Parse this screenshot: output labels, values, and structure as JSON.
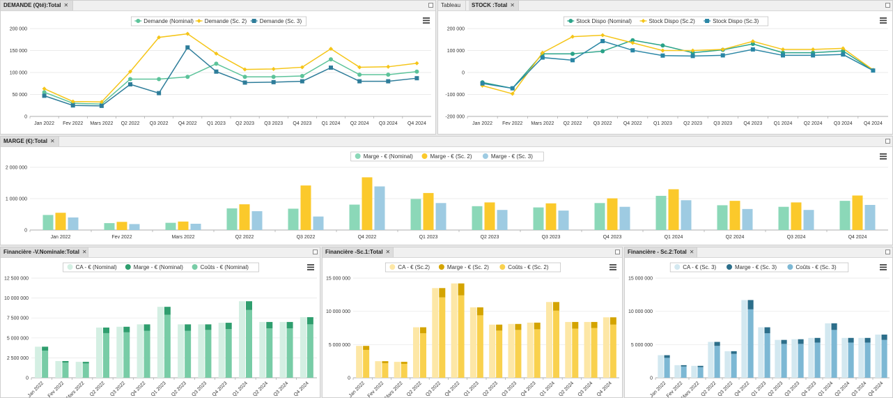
{
  "panels": {
    "demande": {
      "tabs": [
        "DEMANDE (Qté):Total"
      ],
      "legend": [
        "Demande (Nominal)",
        "Demande (Sc. 2)",
        "Demande (Sc. 3)"
      ]
    },
    "stock": {
      "tabs": [
        "Tableau",
        "STOCK :Total"
      ],
      "legend": [
        "Stock Dispo (Nominal)",
        "Stock Dispo (Sc.2)",
        "Stock Dispo (Sc.3)"
      ]
    },
    "marge": {
      "tabs": [
        "MARGE (€):Total"
      ],
      "legend": [
        "Marge - € (Nominal)",
        "Marge - € (Sc. 2)",
        "Marge - € (Sc. 3)"
      ]
    },
    "fin_nominal": {
      "tabs": [
        "Financière -V.Nominale:Total"
      ],
      "legend": [
        "CA - € (Nominal)",
        "Marge - € (Nominal)",
        "Coûts - € (Nominal)"
      ]
    },
    "fin_sc1": {
      "tabs": [
        "Financière -Sc.1:Total"
      ],
      "legend": [
        "CA - € (Sc.2)",
        "Marge - € (Sc. 2)",
        "Coûts - € (Sc. 2)"
      ]
    },
    "fin_sc2": {
      "tabs": [
        "Financière - Sc.2:Total"
      ],
      "legend": [
        "CA - € (Sc. 3)",
        "Marge - € (Sc. 3)",
        "Coûts - € (Sc. 3)"
      ]
    }
  },
  "chart_data": [
    {
      "id": "demande",
      "type": "line",
      "categories": [
        "Jan 2022",
        "Fev 2022",
        "Mars 2022",
        "Q2 2022",
        "Q3 2022",
        "Q4 2022",
        "Q1 2023",
        "Q2 2023",
        "Q3 2023",
        "Q4 2023",
        "Q1 2024",
        "Q2 2024",
        "Q3 2024",
        "Q4 2024"
      ],
      "yticks": [
        "0",
        "50 000",
        "100 000",
        "150 000",
        "200 000"
      ],
      "ylim": [
        0,
        200000
      ],
      "legend_position": "top",
      "series": [
        {
          "name": "Demande (Nominal)",
          "color": "#5cc39a",
          "marker": "circle",
          "values": [
            55000,
            30000,
            28000,
            85000,
            85000,
            90000,
            120000,
            90000,
            90000,
            92000,
            130000,
            95000,
            95000,
            102000
          ]
        },
        {
          "name": "Demande (Sc. 2)",
          "color": "#f5c518",
          "marker": "diamond",
          "values": [
            63000,
            34000,
            33000,
            102000,
            180000,
            188000,
            143000,
            107000,
            108000,
            112000,
            154000,
            112000,
            113000,
            121000
          ]
        },
        {
          "name": "Demande (Sc. 3)",
          "color": "#2e7d9a",
          "marker": "square",
          "values": [
            47000,
            25000,
            24000,
            73000,
            53000,
            157000,
            102000,
            77000,
            78000,
            80000,
            111000,
            80000,
            80000,
            87000
          ]
        }
      ]
    },
    {
      "id": "stock",
      "type": "line",
      "categories": [
        "Jan 2022",
        "Fev 2022",
        "Mars 2022",
        "Q2 2022",
        "Q3 2022",
        "Q4 2022",
        "Q1 2023",
        "Q2 2023",
        "Q3 2023",
        "Q4 2023",
        "Q1 2024",
        "Q2 2024",
        "Q3 2024",
        "Q4 2024"
      ],
      "yticks": [
        "-200 000",
        "-100 000",
        "0",
        "100 000",
        "200 000"
      ],
      "ylim": [
        -200000,
        200000
      ],
      "legend_position": "top",
      "series": [
        {
          "name": "Stock Dispo (Nominal)",
          "color": "#2aa389",
          "marker": "circle",
          "values": [
            -45000,
            -72000,
            85000,
            85000,
            97000,
            147000,
            123000,
            90000,
            103000,
            130000,
            90000,
            90000,
            98000,
            10000
          ]
        },
        {
          "name": "Stock Dispo (Sc.2)",
          "color": "#f5c518",
          "marker": "diamond",
          "values": [
            -60000,
            -97000,
            90000,
            163000,
            170000,
            135000,
            100000,
            100000,
            105000,
            142000,
            105000,
            105000,
            110000,
            12000
          ]
        },
        {
          "name": "Stock Dispo (Sc.3)",
          "color": "#2a86a5",
          "marker": "square",
          "values": [
            -50000,
            -72000,
            68000,
            56000,
            143000,
            101000,
            77000,
            75000,
            78000,
            105000,
            78000,
            78000,
            82000,
            9000
          ]
        }
      ]
    },
    {
      "id": "marge",
      "type": "bar",
      "categories": [
        "Jan 2022",
        "Fev 2022",
        "Mars 2022",
        "Q2 2022",
        "Q3 2022",
        "Q4 2022",
        "Q1 2023",
        "Q2 2023",
        "Q3 2023",
        "Q4 2023",
        "Q1 2024",
        "Q2 2024",
        "Q3 2024",
        "Q4 2024"
      ],
      "yticks": [
        "0",
        "1 000 000",
        "2 000 000"
      ],
      "ylim": [
        0,
        2000000
      ],
      "legend_position": "top",
      "series": [
        {
          "name": "Marge - € (Nominal)",
          "color": "#8bd8b8",
          "values": [
            480000,
            220000,
            230000,
            690000,
            680000,
            810000,
            990000,
            760000,
            720000,
            860000,
            1090000,
            790000,
            740000,
            930000
          ]
        },
        {
          "name": "Marge - € (Sc. 2)",
          "color": "#fbc92b",
          "values": [
            550000,
            260000,
            270000,
            820000,
            1420000,
            1680000,
            1180000,
            880000,
            850000,
            1010000,
            1300000,
            930000,
            880000,
            1100000
          ]
        },
        {
          "name": "Marge - € (Sc. 3)",
          "color": "#9ecbe2",
          "values": [
            400000,
            190000,
            200000,
            600000,
            430000,
            1390000,
            860000,
            640000,
            620000,
            740000,
            950000,
            670000,
            640000,
            800000
          ]
        }
      ]
    },
    {
      "id": "fin_nominal",
      "type": "bar",
      "stacked_pair": true,
      "categories": [
        "Jan 2022",
        "Fev 2022",
        "Mars 2022",
        "Q2 2022",
        "Q3 2022",
        "Q4 2022",
        "Q1 2023",
        "Q2 2023",
        "Q3 2023",
        "Q4 2023",
        "Q1 2024",
        "Q2 2024",
        "Q3 2024",
        "Q4 2024"
      ],
      "yticks": [
        "0",
        "2 500 000",
        "5 000 000",
        "7 500 000",
        "10 000 000",
        "12 500 000"
      ],
      "ylim": [
        0,
        12500000
      ],
      "legend_position": "top",
      "ca": [
        3900000,
        2100000,
        2000000,
        6300000,
        6400000,
        6700000,
        8900000,
        6700000,
        6700000,
        6900000,
        9600000,
        7000000,
        7000000,
        7600000
      ],
      "couts": [
        3400000,
        1900000,
        1800000,
        5600000,
        5700000,
        5900000,
        7900000,
        5900000,
        6000000,
        6100000,
        8500000,
        6200000,
        6200000,
        6700000
      ],
      "marge": [
        500000,
        200000,
        200000,
        700000,
        700000,
        800000,
        1000000,
        800000,
        700000,
        800000,
        1100000,
        800000,
        800000,
        900000
      ],
      "colors": {
        "ca": "#d4efe3",
        "marge": "#2f9e6e",
        "couts": "#78cca6"
      }
    },
    {
      "id": "fin_sc1",
      "type": "bar",
      "stacked_pair": true,
      "categories": [
        "Jan 2022",
        "Fev 2022",
        "Mars 2022",
        "Q2 2022",
        "Q3 2022",
        "Q4 2022",
        "Q1 2023",
        "Q2 2023",
        "Q3 2023",
        "Q4 2023",
        "Q1 2024",
        "Q2 2024",
        "Q3 2024",
        "Q4 2024"
      ],
      "yticks": [
        "0",
        "5 000 000",
        "10 000 000",
        "15 000 000"
      ],
      "ylim": [
        0,
        15000000
      ],
      "legend_position": "top",
      "ca": [
        4800000,
        2500000,
        2400000,
        7600000,
        13500000,
        14200000,
        10600000,
        8000000,
        8100000,
        8300000,
        11400000,
        8400000,
        8400000,
        9100000
      ],
      "couts": [
        4200000,
        2200000,
        2100000,
        6700000,
        12100000,
        12400000,
        9400000,
        7100000,
        7200000,
        7300000,
        10100000,
        7400000,
        7500000,
        8000000
      ],
      "marge": [
        600000,
        300000,
        300000,
        900000,
        1400000,
        1800000,
        1200000,
        900000,
        900000,
        1000000,
        1300000,
        1000000,
        900000,
        1100000
      ],
      "colors": {
        "ca": "#fde7a6",
        "marge": "#d4a400",
        "couts": "#f9d14e"
      }
    },
    {
      "id": "fin_sc2",
      "type": "bar",
      "stacked_pair": true,
      "categories": [
        "Jan 2022",
        "Fev 2022",
        "Mars 2022",
        "Q2 2022",
        "Q3 2022",
        "Q4 2022",
        "Q1 2023",
        "Q2 2023",
        "Q3 2023",
        "Q4 2023",
        "Q1 2024",
        "Q2 2024",
        "Q3 2024",
        "Q4 2024"
      ],
      "yticks": [
        "0",
        "5 000 000",
        "10 000 000",
        "15 000 000"
      ],
      "ylim": [
        0,
        15000000
      ],
      "legend_position": "top",
      "ca": [
        3400000,
        1900000,
        1800000,
        5400000,
        4000000,
        11700000,
        7600000,
        5700000,
        5800000,
        6000000,
        8200000,
        6000000,
        6000000,
        6500000
      ],
      "couts": [
        3000000,
        1700000,
        1600000,
        4800000,
        3600000,
        10300000,
        6700000,
        5100000,
        5100000,
        5300000,
        7200000,
        5300000,
        5300000,
        5700000
      ],
      "marge": [
        400000,
        200000,
        200000,
        600000,
        400000,
        1400000,
        900000,
        600000,
        700000,
        700000,
        1000000,
        700000,
        700000,
        800000
      ],
      "colors": {
        "ca": "#d3e8f0",
        "marge": "#2c6e8a",
        "couts": "#7db8d4"
      }
    }
  ]
}
